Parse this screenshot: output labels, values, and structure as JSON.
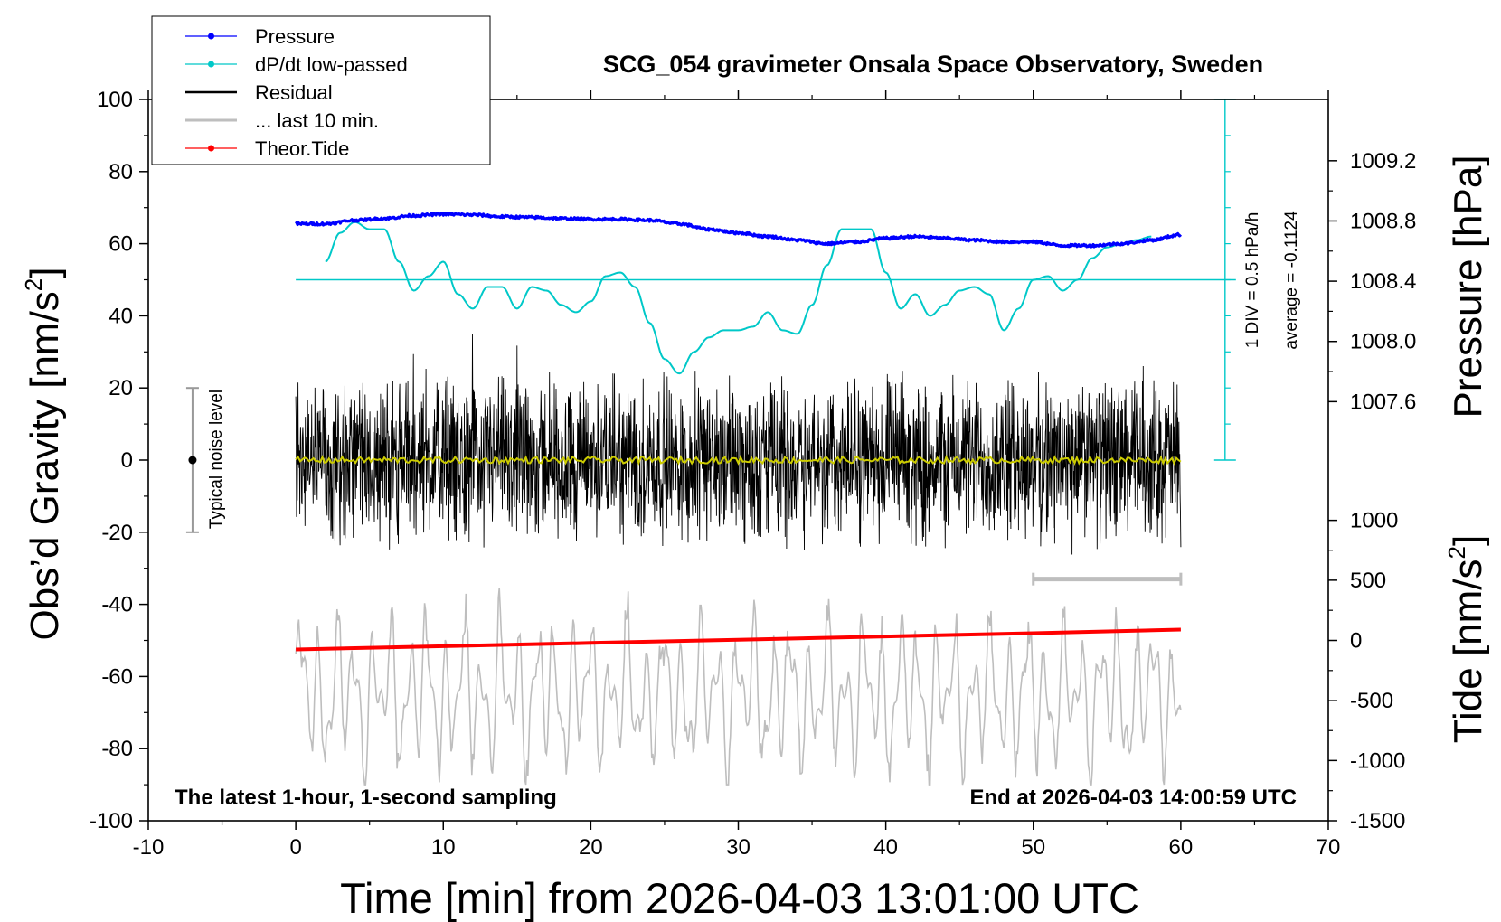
{
  "chart_data": {
    "type": "line",
    "title": "SCG_054 gravimeter Onsala Space Observatory, Sweden",
    "xlabel": "Time [min] from 2026-04-03 13:01:00 UTC",
    "ylabel_left_main": "Obs’d Gravity [nm/s",
    "ylabel_left_sup": "2",
    "ylabel_left_tail": "]",
    "ylabel_right_top": "Pressure [hPa]",
    "ylabel_right_bottom_main": "Tide [nm/s",
    "ylabel_right_bottom_sup": "2",
    "ylabel_right_bottom_tail": "]",
    "xlim": [
      -10,
      70
    ],
    "ylim": [
      -100,
      100
    ],
    "xticks": [
      "-10",
      "0",
      "10",
      "20",
      "30",
      "40",
      "50",
      "60",
      "70"
    ],
    "xtick_values": [
      -10,
      0,
      10,
      20,
      30,
      40,
      50,
      60,
      70
    ],
    "yticks": [
      "-100",
      "-80",
      "-60",
      "-40",
      "-20",
      "0",
      "20",
      "40",
      "60",
      "80",
      "100"
    ],
    "ytick_values": [
      -100,
      -80,
      -60,
      -40,
      -20,
      0,
      20,
      40,
      60,
      80,
      100
    ],
    "pressure_axis": {
      "ticks": [
        "1009.2",
        "1008.8",
        "1008.4",
        "1008.0",
        "1007.6"
      ],
      "tick_values": [
        1009.2,
        1008.8,
        1008.4,
        1008.0,
        1007.6
      ],
      "gravity_at": [
        83,
        66.3,
        49.6,
        32.9,
        16.2
      ]
    },
    "tide_axis": {
      "ticks": [
        "1000",
        "500",
        "0",
        "-500",
        "-1000",
        "-1500"
      ],
      "tick_values": [
        1000,
        500,
        0,
        -500,
        -1000,
        -1500
      ],
      "gravity_at": [
        -16.7,
        -33.3,
        -50,
        -66.7,
        -83.3,
        -100
      ]
    },
    "legend": {
      "placement": "top-left",
      "entries": [
        {
          "label": "Pressure",
          "color": "#0000ff",
          "marker": true
        },
        {
          "label": "dP/dt low-passed",
          "color": "#00c8c8",
          "marker": true
        },
        {
          "label": "Residual",
          "color": "#000000",
          "marker": false
        },
        {
          "label": "... last 10 min.",
          "color": "#bebebe",
          "marker": false
        },
        {
          "label": "Theor.Tide",
          "color": "#ff0000",
          "marker": true
        }
      ]
    },
    "annotations": {
      "bottom_left": "The latest 1-hour, 1-second sampling",
      "bottom_right": "End at 2026-04-03 14:00:59 UTC",
      "noise_label": "Typical noise level",
      "dpdt_scale": "1 DIV = 0.5 hPa/h",
      "dpdt_average": "average = -0.1124"
    },
    "noise_bar": {
      "x": -7,
      "y": 0,
      "ymin": -20,
      "ymax": 20
    },
    "last10_bar": {
      "xmin": 50,
      "xmax": 60,
      "y": -33
    },
    "dpdt_axis": {
      "x": 63,
      "ymin": 0,
      "ymax": 100,
      "zero_line": 50,
      "divisions": 20
    },
    "colors": {
      "pressure": "#0000ff",
      "dpdt": "#00c8c8",
      "residual": "#000000",
      "residual_smooth": "#cccc00",
      "last10": "#bebebe",
      "tide": "#ff0000"
    },
    "series": [
      {
        "name": "Pressure",
        "units": "gravity-axis",
        "x": [
          0,
          2,
          4,
          6,
          8,
          10,
          12,
          14,
          16,
          18,
          20,
          22,
          24,
          26,
          28,
          30,
          32,
          34,
          36,
          38,
          40,
          42,
          44,
          46,
          48,
          50,
          52,
          54,
          56,
          58,
          60
        ],
        "y": [
          65.5,
          65.5,
          66.5,
          67,
          67.8,
          68.2,
          68,
          67.5,
          67.3,
          67,
          66.8,
          66.8,
          66.5,
          65.5,
          64,
          63,
          62,
          61,
          60,
          60.5,
          61.5,
          62,
          61.5,
          61,
          60.5,
          60.5,
          59.5,
          59.5,
          60,
          61,
          62.5
        ]
      },
      {
        "name": "dP/dt low-passed",
        "units": "gravity-axis",
        "x": [
          2,
          3,
          4,
          5,
          6,
          7,
          8,
          9,
          10,
          11,
          12,
          13,
          14,
          15,
          16,
          17,
          18,
          19,
          20,
          21,
          22,
          23,
          24,
          25,
          26,
          27,
          28,
          29,
          30,
          31,
          32,
          33,
          34,
          35,
          36,
          37,
          38,
          39,
          40,
          41,
          42,
          43,
          44,
          45,
          46,
          47,
          48,
          49,
          50,
          51,
          52,
          53,
          54,
          55,
          56,
          57,
          58
        ],
        "y": [
          55,
          63,
          66,
          64,
          64,
          55,
          47,
          51,
          55,
          46,
          42,
          48,
          48,
          42,
          48,
          47,
          43,
          41,
          44,
          51,
          52,
          48,
          38,
          28,
          24,
          30,
          34,
          36,
          36,
          37,
          41,
          36,
          35,
          43,
          54,
          64,
          64,
          64,
          52,
          42,
          46,
          40,
          43,
          47,
          48,
          46,
          36,
          42,
          50,
          51,
          47,
          50,
          56,
          59,
          60,
          61,
          62
        ]
      },
      {
        "name": "Theor.Tide",
        "units": "gravity-axis",
        "x": [
          0,
          10,
          20,
          30,
          40,
          50,
          60
        ],
        "y": [
          -52.5,
          -51.6,
          -50.7,
          -49.8,
          -48.9,
          -48,
          -47
        ]
      }
    ],
    "residual": {
      "xmin": 0,
      "xmax": 60,
      "amplitude": 22,
      "peak_max": 35,
      "peak_min": -32
    },
    "last10_min": {
      "xmin": 0,
      "xmax": 60,
      "baseline": -65,
      "amplitude": 25,
      "peak_max": -27,
      "peak_min": -90
    }
  }
}
